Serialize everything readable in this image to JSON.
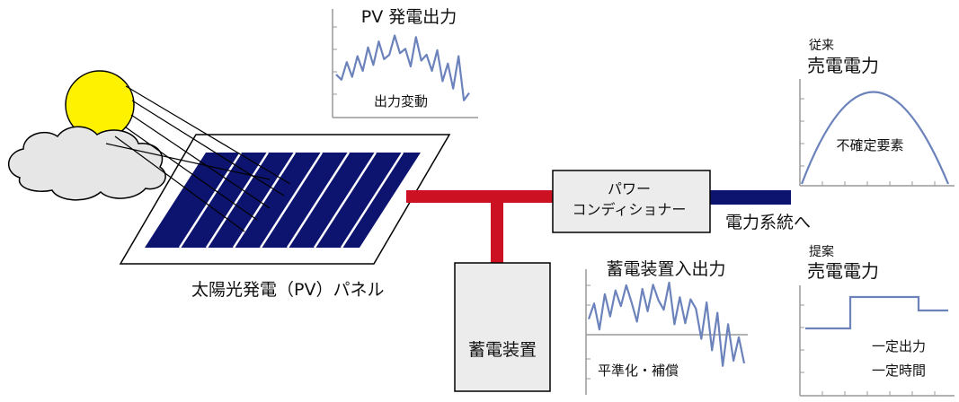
{
  "labels": {
    "pv_output_title": "PV 発電出力",
    "pv_fluctuation": "出力変動",
    "panel_label": "太陽光発電（PV）パネル",
    "power_conditioner_line1": "パワー",
    "power_conditioner_line2": "コンディショナー",
    "to_grid": "電力系統へ",
    "storage_device": "蓄電装置",
    "storage_io_title": "蓄電装置入出力",
    "smoothing": "平準化・補償",
    "conventional_small": "従来",
    "conventional_title": "売電電力",
    "uncertainty": "不確定要素",
    "proposed_small": "提案",
    "proposed_title": "売電電力",
    "constant_output": "一定出力",
    "constant_time": "一定時間"
  },
  "colors": {
    "sun": "#fff200",
    "cloud": "#e6e6e6",
    "panel_cell": "#0d1470",
    "dc_line": "#cc1122",
    "ac_line": "#0d1470",
    "graph_line": "#6b82bb",
    "box_fill": "#ececec"
  },
  "pv_output_series": [
    0.45,
    0.38,
    0.62,
    0.42,
    0.7,
    0.5,
    0.82,
    0.58,
    0.9,
    0.66,
    0.72,
    0.98,
    0.74,
    0.8,
    0.56,
    0.96,
    0.64,
    0.72,
    0.5,
    0.78,
    0.36,
    0.6,
    0.26,
    0.7,
    0.1,
    0.2
  ],
  "storage_io_series": [
    0.3,
    0.6,
    0.1,
    0.78,
    0.35,
    0.85,
    0.55,
    0.95,
    0.62,
    0.25,
    0.88,
    0.45,
    0.96,
    0.66,
    0.48,
    1.0,
    0.2,
    0.72,
    0.22,
    0.68,
    0.5,
    -0.08,
    0.62,
    -0.3,
    0.42,
    -0.6,
    0.2,
    -0.5,
    -0.05,
    -0.55
  ]
}
